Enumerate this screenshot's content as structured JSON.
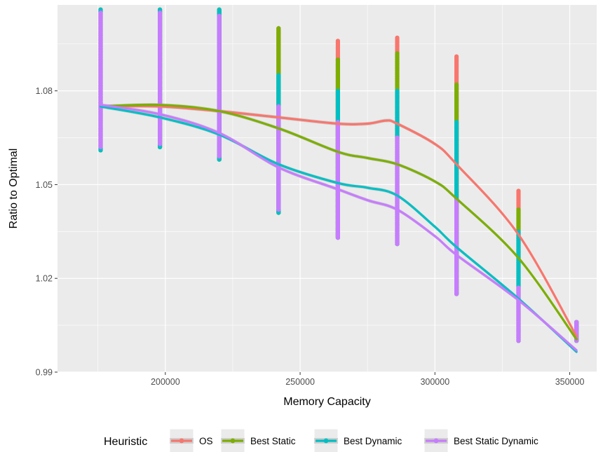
{
  "chart_data": {
    "type": "scatter",
    "xlabel": "Memory Capacity",
    "ylabel": "Ratio to Optimal",
    "xlim": [
      160000,
      360000
    ],
    "ylim": [
      0.99,
      1.1075
    ],
    "x_ticks": [
      200000,
      250000,
      300000,
      350000
    ],
    "x_tick_labels": [
      "200000",
      "250000",
      "300000",
      "350000"
    ],
    "y_ticks": [
      0.99,
      1.02,
      1.05,
      1.08
    ],
    "y_tick_labels": [
      "0.99",
      "1.02",
      "1.05",
      "1.08"
    ],
    "grid": true,
    "legend": {
      "title": "Heuristic",
      "position": "bottom"
    },
    "x_positions": [
      176000,
      198000,
      220000,
      242000,
      264000,
      286000,
      308000,
      331000,
      352500
    ],
    "series": [
      {
        "name": "OS",
        "color": "#F8766D",
        "point_ranges": [
          [
            1.061,
            1.106
          ],
          [
            1.062,
            1.106
          ],
          [
            1.058,
            1.106
          ],
          [
            1.041,
            1.1
          ],
          [
            1.033,
            1.096
          ],
          [
            1.031,
            1.097
          ],
          [
            1.015,
            1.091
          ],
          [
            1.0,
            1.048
          ],
          [
            1.0,
            1.006
          ]
        ],
        "smooth": [
          [
            176000,
            1.075
          ],
          [
            198000,
            1.075
          ],
          [
            220000,
            1.0735
          ],
          [
            242000,
            1.0715
          ],
          [
            264000,
            1.0695
          ],
          [
            275000,
            1.0695
          ],
          [
            282000,
            1.0705
          ],
          [
            286000,
            1.0695
          ],
          [
            300000,
            1.063
          ],
          [
            308000,
            1.0565
          ],
          [
            331000,
            1.034
          ],
          [
            352500,
            1.0015
          ]
        ]
      },
      {
        "name": "Best Static",
        "color": "#7CAE00",
        "point_ranges": [
          [
            1.061,
            1.106
          ],
          [
            1.062,
            1.106
          ],
          [
            1.058,
            1.106
          ],
          [
            1.041,
            1.1
          ],
          [
            1.033,
            1.09
          ],
          [
            1.031,
            1.092
          ],
          [
            1.015,
            1.082
          ],
          [
            1.0,
            1.042
          ],
          [
            1.0,
            1.006
          ]
        ],
        "smooth": [
          [
            176000,
            1.075
          ],
          [
            198000,
            1.0755
          ],
          [
            220000,
            1.0735
          ],
          [
            242000,
            1.068
          ],
          [
            264000,
            1.0605
          ],
          [
            275000,
            1.0585
          ],
          [
            286000,
            1.0565
          ],
          [
            300000,
            1.051
          ],
          [
            308000,
            1.0455
          ],
          [
            331000,
            1.0265
          ],
          [
            352500,
            1.0005
          ]
        ]
      },
      {
        "name": "Best Dynamic",
        "color": "#00BFC4",
        "point_ranges": [
          [
            1.061,
            1.106
          ],
          [
            1.062,
            1.106
          ],
          [
            1.058,
            1.106
          ],
          [
            1.041,
            1.085
          ],
          [
            1.033,
            1.08
          ],
          [
            1.031,
            1.08
          ],
          [
            1.015,
            1.07
          ],
          [
            1.0,
            1.035
          ],
          [
            1.0,
            1.006
          ]
        ],
        "smooth": [
          [
            176000,
            1.075
          ],
          [
            198000,
            1.0715
          ],
          [
            220000,
            1.066
          ],
          [
            242000,
            1.0565
          ],
          [
            264000,
            1.0505
          ],
          [
            275000,
            1.049
          ],
          [
            286000,
            1.0465
          ],
          [
            300000,
            1.0365
          ],
          [
            308000,
            1.03
          ],
          [
            331000,
            1.0135
          ],
          [
            352500,
            0.9965
          ]
        ]
      },
      {
        "name": "Best Static Dynamic",
        "color": "#C77CFF",
        "point_ranges": [
          [
            1.062,
            1.105
          ],
          [
            1.063,
            1.105
          ],
          [
            1.059,
            1.104
          ],
          [
            1.042,
            1.075
          ],
          [
            1.033,
            1.07
          ],
          [
            1.031,
            1.065
          ],
          [
            1.015,
            1.045
          ],
          [
            1.0,
            1.017
          ],
          [
            1.0,
            1.006
          ]
        ],
        "smooth": [
          [
            176000,
            1.0755
          ],
          [
            198000,
            1.0725
          ],
          [
            220000,
            1.0665
          ],
          [
            242000,
            1.0555
          ],
          [
            264000,
            1.0485
          ],
          [
            275000,
            1.045
          ],
          [
            286000,
            1.042
          ],
          [
            300000,
            1.0335
          ],
          [
            308000,
            1.0275
          ],
          [
            331000,
            1.013
          ],
          [
            352500,
            0.997
          ]
        ]
      }
    ]
  }
}
